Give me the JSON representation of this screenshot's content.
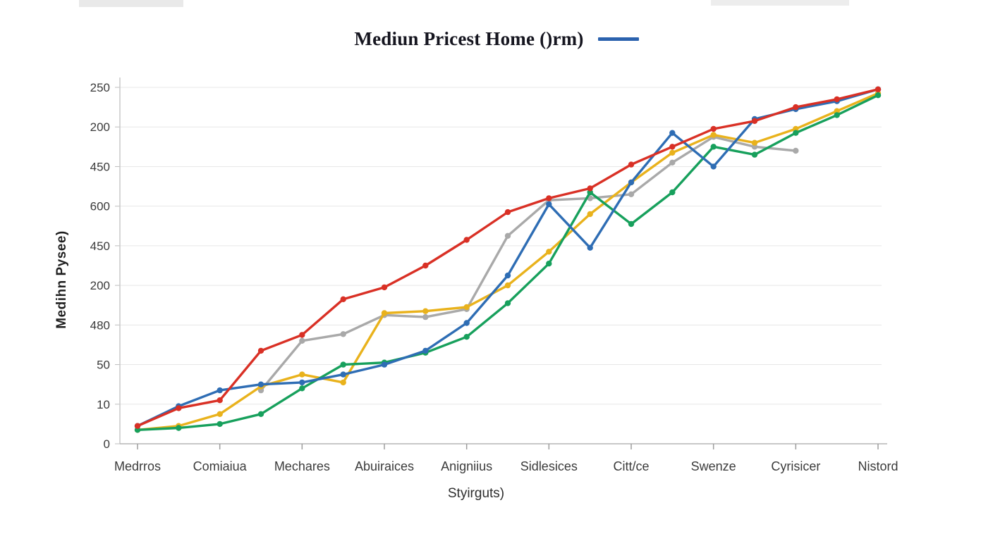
{
  "title_block": {
    "title": "Mediun Pricest Home ()rm)",
    "legend_swatch_color": "#2b62ae"
  },
  "chart_data": {
    "type": "line",
    "title": "Mediun Pricest Home ()rm)",
    "xlabel": "Styirguts)",
    "ylabel": "Medihn  Pysee)",
    "categories": [
      "Medrros",
      "Comiaiua",
      "Mechares",
      "Abuiraices",
      "Anigniius",
      "Sidlesices",
      "Citt/ce",
      "Swenze",
      "Cyrisicer",
      "Nistord"
    ],
    "points_per_category_interval": 2,
    "y_tick_labels_bottom_to_top": [
      "0",
      "10",
      "50",
      "480",
      "200",
      "450",
      "600",
      "450",
      "200",
      "250"
    ],
    "ylim_gridline_units": [
      0,
      9
    ],
    "grid": "horizontal",
    "legend_position": "top-right-of-title",
    "series": [
      {
        "name": "gray",
        "color": "#a9a9a9",
        "values_gridline_units": [
          null,
          null,
          null,
          1.35,
          2.6,
          2.77,
          3.25,
          3.2,
          3.4,
          5.25,
          6.15,
          6.2,
          6.3,
          7.1,
          7.75,
          7.5,
          7.4,
          null,
          null
        ]
      },
      {
        "name": "yellow",
        "color": "#e9b21c",
        "values_gridline_units": [
          0.35,
          0.45,
          0.75,
          1.45,
          1.75,
          1.55,
          3.3,
          3.35,
          3.45,
          4.0,
          4.85,
          5.8,
          6.6,
          7.35,
          7.8,
          7.6,
          7.95,
          8.4,
          8.85
        ]
      },
      {
        "name": "green",
        "color": "#17a05c",
        "values_gridline_units": [
          0.35,
          0.4,
          0.5,
          0.75,
          1.4,
          2.0,
          2.05,
          2.3,
          2.7,
          3.55,
          4.55,
          6.35,
          5.55,
          6.35,
          7.5,
          7.3,
          7.85,
          8.3,
          8.8
        ]
      },
      {
        "name": "blue",
        "color": "#2e6db4",
        "values_gridline_units": [
          0.45,
          0.95,
          1.35,
          1.5,
          1.55,
          1.75,
          2.0,
          2.35,
          3.05,
          4.25,
          6.05,
          4.95,
          6.6,
          7.85,
          7.0,
          8.2,
          8.45,
          8.65,
          8.95
        ]
      },
      {
        "name": "red",
        "color": "#d93025",
        "values_gridline_units": [
          0.45,
          0.9,
          1.1,
          2.35,
          2.75,
          3.65,
          3.95,
          4.5,
          5.15,
          5.85,
          6.2,
          6.45,
          7.05,
          7.5,
          7.95,
          8.15,
          8.5,
          8.7,
          8.95
        ]
      }
    ]
  }
}
